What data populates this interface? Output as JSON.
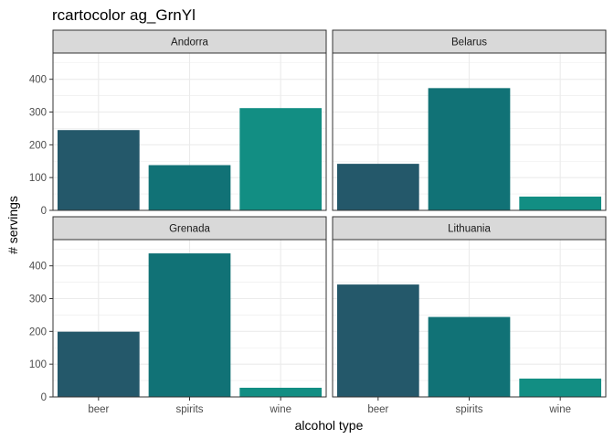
{
  "chart_data": {
    "type": "bar",
    "title": "rcartocolor ag_GrnYl",
    "xlabel": "alcohol type",
    "ylabel": "# servings",
    "categories": [
      "beer",
      "spirits",
      "wine"
    ],
    "ylim": [
      0,
      480
    ],
    "yticks": [
      0,
      100,
      200,
      300,
      400
    ],
    "grid": true,
    "legend": "none",
    "colors": {
      "beer": "#24586A",
      "spirits": "#117276",
      "wine": "#128E83",
      "strip_bg": "#D9D9D9",
      "grid": "#EBEBEB",
      "border": "#333333"
    },
    "panels": [
      {
        "name": "Andorra",
        "values": [
          245,
          138,
          312
        ]
      },
      {
        "name": "Belarus",
        "values": [
          142,
          373,
          42
        ]
      },
      {
        "name": "Grenada",
        "values": [
          199,
          438,
          28
        ]
      },
      {
        "name": "Lithuania",
        "values": [
          343,
          244,
          56
        ]
      }
    ]
  }
}
